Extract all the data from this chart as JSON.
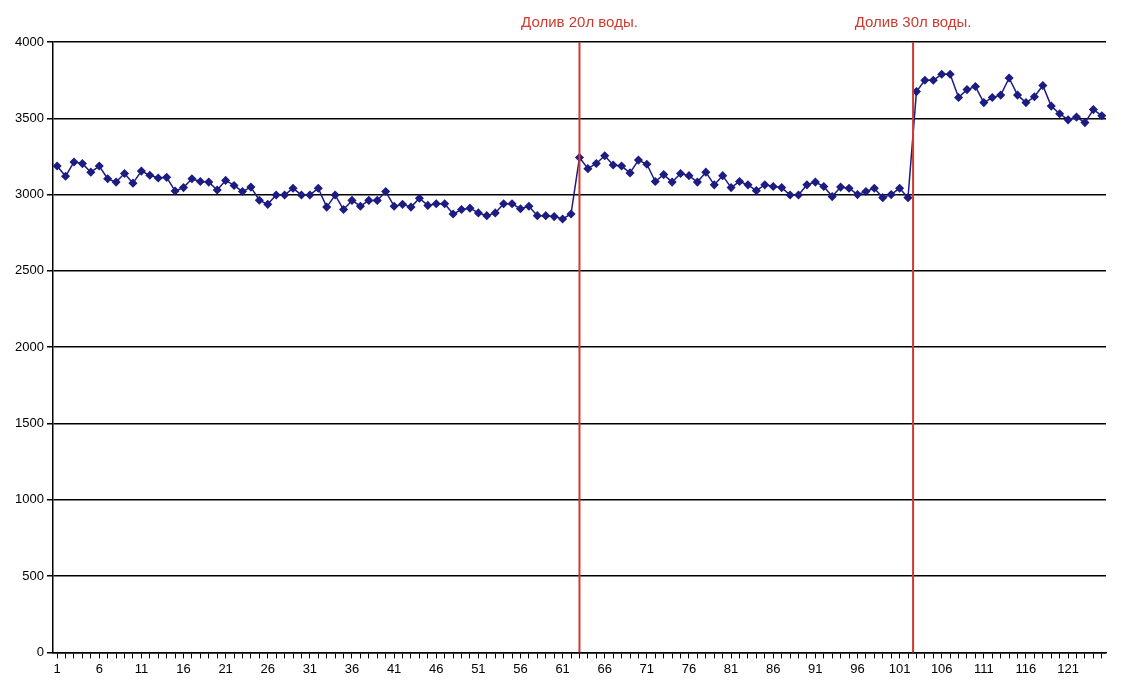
{
  "chart_data": {
    "type": "line",
    "x": [
      1,
      2,
      3,
      4,
      5,
      6,
      7,
      8,
      9,
      10,
      11,
      12,
      13,
      14,
      15,
      16,
      17,
      18,
      19,
      20,
      21,
      22,
      23,
      24,
      25,
      26,
      27,
      28,
      29,
      30,
      31,
      32,
      33,
      34,
      35,
      36,
      37,
      38,
      39,
      40,
      41,
      42,
      43,
      44,
      45,
      46,
      47,
      48,
      49,
      50,
      51,
      52,
      53,
      54,
      55,
      56,
      57,
      58,
      59,
      60,
      61,
      62,
      63,
      64,
      65,
      66,
      67,
      68,
      69,
      70,
      71,
      72,
      73,
      74,
      75,
      76,
      77,
      78,
      79,
      80,
      81,
      82,
      83,
      84,
      85,
      86,
      87,
      88,
      89,
      90,
      91,
      92,
      93,
      94,
      95,
      96,
      97,
      98,
      99,
      100,
      101,
      102,
      103,
      104,
      105,
      106,
      107,
      108,
      109,
      110,
      111,
      112,
      113,
      114,
      115,
      116,
      117,
      118,
      119,
      120,
      121,
      122,
      123,
      124,
      125
    ],
    "series": [
      {
        "color": "#1c1c82",
        "values": [
          3187,
          3120,
          3214,
          3203,
          3147,
          3187,
          3104,
          3082,
          3138,
          3075,
          3154,
          3127,
          3109,
          3113,
          3024,
          3046,
          3104,
          3086,
          3082,
          3030,
          3093,
          3060,
          3020,
          3049,
          2963,
          2936,
          2997,
          2997,
          3042,
          2997,
          2997,
          3042,
          2918,
          2997,
          2902,
          2962,
          2924,
          2962,
          2962,
          3020,
          2924,
          2936,
          2918,
          2976,
          2929,
          2940,
          2940,
          2873,
          2902,
          2911,
          2880,
          2862,
          2880,
          2940,
          2940,
          2907,
          2924,
          2862,
          2862,
          2856,
          2840,
          2873,
          3243,
          3170,
          3204,
          3255,
          3194,
          3187,
          3142,
          3226,
          3199,
          3086,
          3131,
          3082,
          3138,
          3124,
          3082,
          3147,
          3064,
          3124,
          3046,
          3086,
          3064,
          3026,
          3064,
          3053,
          3046,
          2997,
          2997,
          3064,
          3082,
          3053,
          2987,
          3049,
          3042,
          3000,
          3020,
          3042,
          2980,
          3000,
          3042,
          2980,
          3675,
          3749,
          3749,
          3789,
          3789,
          3636,
          3688,
          3708,
          3603,
          3636,
          3652,
          3764,
          3652,
          3603,
          3641,
          3715,
          3580,
          3530,
          3490,
          3508,
          3472,
          3557,
          3517
        ]
      }
    ],
    "xlim": [
      0.5,
      125.5
    ],
    "xticks": [
      1,
      {
        "value": 2,
        "label": null
      },
      {
        "value": 3,
        "label": null
      },
      {
        "value": 4,
        "label": null
      },
      {
        "value": 5,
        "label": null
      },
      6,
      {
        "value": 7,
        "label": null
      },
      {
        "value": 8,
        "label": null
      },
      {
        "value": 9,
        "label": null
      },
      {
        "value": 10,
        "label": null
      },
      11,
      {
        "value": 12,
        "label": null
      },
      {
        "value": 13,
        "label": null
      },
      {
        "value": 14,
        "label": null
      },
      {
        "value": 15,
        "label": null
      },
      16,
      {
        "value": 17,
        "label": null
      },
      {
        "value": 18,
        "label": null
      },
      {
        "value": 19,
        "label": null
      },
      {
        "value": 20,
        "label": null
      },
      21,
      {
        "value": 22,
        "label": null
      },
      {
        "value": 23,
        "label": null
      },
      {
        "value": 24,
        "label": null
      },
      {
        "value": 25,
        "label": null
      },
      26,
      {
        "value": 27,
        "label": null
      },
      {
        "value": 28,
        "label": null
      },
      {
        "value": 29,
        "label": null
      },
      {
        "value": 30,
        "label": null
      },
      31,
      {
        "value": 32,
        "label": null
      },
      {
        "value": 33,
        "label": null
      },
      {
        "value": 34,
        "label": null
      },
      {
        "value": 35,
        "label": null
      },
      36,
      {
        "value": 37,
        "label": null
      },
      {
        "value": 38,
        "label": null
      },
      {
        "value": 39,
        "label": null
      },
      {
        "value": 40,
        "label": null
      },
      41,
      {
        "value": 42,
        "label": null
      },
      {
        "value": 43,
        "label": null
      },
      {
        "value": 44,
        "label": null
      },
      {
        "value": 45,
        "label": null
      },
      46,
      {
        "value": 47,
        "label": null
      },
      {
        "value": 48,
        "label": null
      },
      {
        "value": 49,
        "label": null
      },
      {
        "value": 50,
        "label": null
      },
      51,
      {
        "value": 52,
        "label": null
      },
      {
        "value": 53,
        "label": null
      },
      {
        "value": 54,
        "label": null
      },
      {
        "value": 55,
        "label": null
      },
      56,
      {
        "value": 57,
        "label": null
      },
      {
        "value": 58,
        "label": null
      },
      {
        "value": 59,
        "label": null
      },
      {
        "value": 60,
        "label": null
      },
      61,
      {
        "value": 62,
        "label": null
      },
      {
        "value": 63,
        "label": null
      },
      {
        "value": 64,
        "label": null
      },
      {
        "value": 65,
        "label": null
      },
      66,
      {
        "value": 67,
        "label": null
      },
      {
        "value": 68,
        "label": null
      },
      {
        "value": 69,
        "label": null
      },
      {
        "value": 70,
        "label": null
      },
      71,
      {
        "value": 72,
        "label": null
      },
      {
        "value": 73,
        "label": null
      },
      {
        "value": 74,
        "label": null
      },
      {
        "value": 75,
        "label": null
      },
      76,
      {
        "value": 77,
        "label": null
      },
      {
        "value": 78,
        "label": null
      },
      {
        "value": 79,
        "label": null
      },
      {
        "value": 80,
        "label": null
      },
      81,
      {
        "value": 82,
        "label": null
      },
      {
        "value": 83,
        "label": null
      },
      {
        "value": 84,
        "label": null
      },
      {
        "value": 85,
        "label": null
      },
      86,
      {
        "value": 87,
        "label": null
      },
      {
        "value": 88,
        "label": null
      },
      {
        "value": 89,
        "label": null
      },
      {
        "value": 90,
        "label": null
      },
      91,
      {
        "value": 92,
        "label": null
      },
      {
        "value": 93,
        "label": null
      },
      {
        "value": 94,
        "label": null
      },
      {
        "value": 95,
        "label": null
      },
      96,
      {
        "value": 97,
        "label": null
      },
      {
        "value": 98,
        "label": null
      },
      {
        "value": 99,
        "label": null
      },
      {
        "value": 100,
        "label": null
      },
      101,
      {
        "value": 102,
        "label": null
      },
      {
        "value": 103,
        "label": null
      },
      {
        "value": 104,
        "label": null
      },
      {
        "value": 105,
        "label": null
      },
      106,
      {
        "value": 107,
        "label": null
      },
      {
        "value": 108,
        "label": null
      },
      {
        "value": 109,
        "label": null
      },
      {
        "value": 110,
        "label": null
      },
      111,
      {
        "value": 112,
        "label": null
      },
      {
        "value": 113,
        "label": null
      },
      {
        "value": 114,
        "label": null
      },
      {
        "value": 115,
        "label": null
      },
      116,
      {
        "value": 117,
        "label": null
      },
      {
        "value": 118,
        "label": null
      },
      {
        "value": 119,
        "label": null
      },
      {
        "value": 120,
        "label": null
      },
      121,
      {
        "value": 122,
        "label": null
      },
      {
        "value": 123,
        "label": null
      },
      {
        "value": 124,
        "label": null
      },
      {
        "value": 125,
        "label": null
      }
    ],
    "ylim": [
      0,
      4000
    ],
    "yticks": [
      0,
      500,
      1000,
      1500,
      2000,
      2500,
      3000,
      3500,
      4000
    ],
    "grid": "y",
    "marker": "diamond",
    "line_style": "solid",
    "legend": false,
    "ref_lines": [
      {
        "axis": "x",
        "value": 63,
        "label": "Долив 20л воды.",
        "color": "#d03a2e"
      },
      {
        "axis": "x",
        "value": 102.6,
        "label": "Долив 30л воды.",
        "color": "#d03a2e"
      }
    ]
  }
}
